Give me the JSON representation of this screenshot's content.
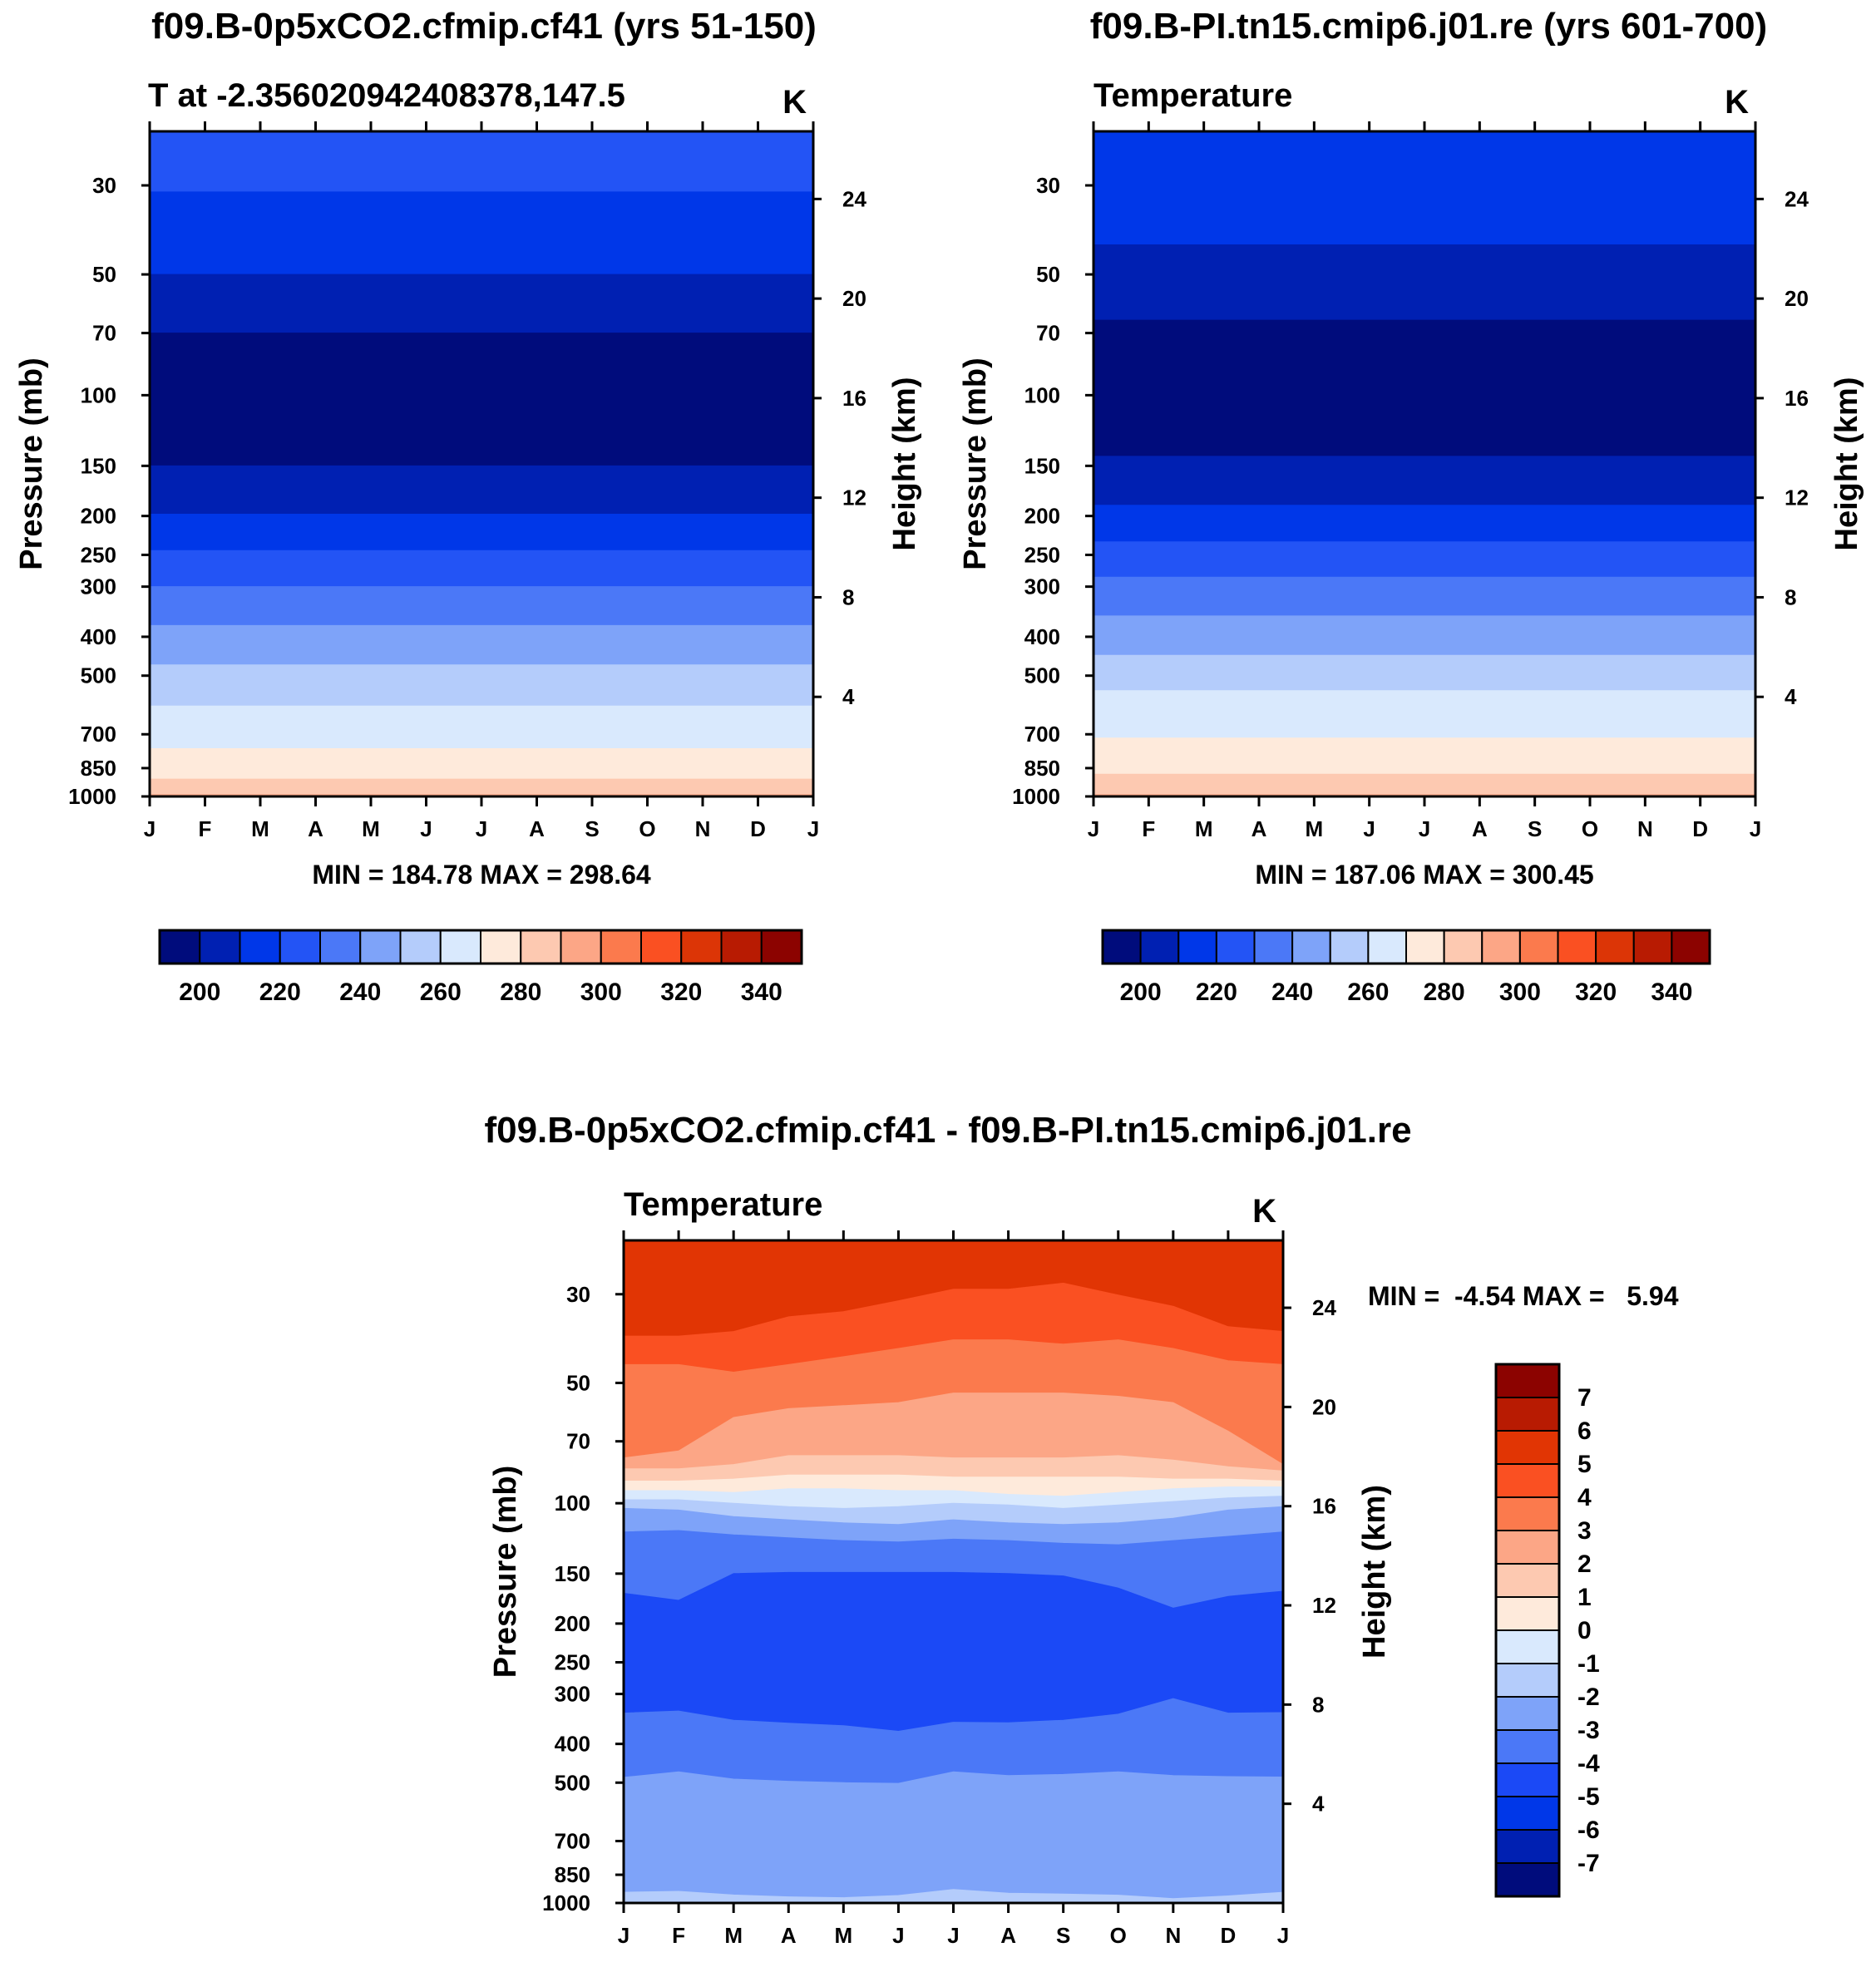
{
  "colors": {
    "abs_palette": [
      "#000c7c",
      "#0020b2",
      "#0037e8",
      "#2354f5",
      "#4b78f7",
      "#7ea3f9",
      "#b4ccfb",
      "#d9e9fd",
      "#feeadb",
      "#fdc9b1",
      "#fca686",
      "#fb7a4d",
      "#fa5022",
      "#dc3506",
      "#b81b02",
      "#8c0300"
    ],
    "diff_palette": [
      "#000c7c",
      "#0020b2",
      "#0037e8",
      "#1b49f6",
      "#4b78f7",
      "#7ea3f9",
      "#b4ccfb",
      "#d9e9fd",
      "#feeadb",
      "#fdc9b1",
      "#fca686",
      "#fb7a4d",
      "#fa5022",
      "#e13504",
      "#b81b02",
      "#8c0300"
    ]
  },
  "chart_data": [
    {
      "type": "contour",
      "title": "f09.B-0p5xCO2.cfmip.cf41 (yrs 51-150)",
      "left_label": "T at -2.356020942408378,147.5",
      "units": "K",
      "ylabel": "Pressure (mb)",
      "y2label": "Height (km)",
      "x_ticks": [
        "J",
        "F",
        "M",
        "A",
        "M",
        "J",
        "J",
        "A",
        "S",
        "O",
        "N",
        "D",
        "J"
      ],
      "pressure_ticks": [
        30,
        50,
        70,
        100,
        150,
        200,
        250,
        300,
        400,
        500,
        700,
        850,
        1000
      ],
      "height_ticks": [
        24,
        20,
        16,
        12,
        8,
        4
      ],
      "ylim_mb": [
        22,
        1000
      ],
      "min_max_text": "MIN = 184.78 MAX = 298.64",
      "colorbar": {
        "orientation": "horizontal",
        "labels": [
          "200",
          "220",
          "240",
          "260",
          "280",
          "300",
          "320",
          "340"
        ]
      },
      "boundaries_mb": [
        {
          "x": [
            0,
            12
          ],
          "p": [
            31,
            31
          ],
          "color_index": 2
        },
        {
          "x": [
            0,
            12
          ],
          "p": [
            50,
            50
          ],
          "color_index": 1
        },
        {
          "x": [
            0,
            12
          ],
          "p": [
            70,
            70
          ],
          "color_index": 0
        },
        {
          "x": [
            0,
            12
          ],
          "p": [
            150,
            150
          ],
          "color_index": 1
        },
        {
          "x": [
            0,
            12
          ],
          "p": [
            198,
            198
          ],
          "color_index": 2
        },
        {
          "x": [
            0,
            12
          ],
          "p": [
            244,
            244
          ],
          "color_index": 3
        },
        {
          "x": [
            0,
            12
          ],
          "p": [
            300,
            300
          ],
          "color_index": 4
        },
        {
          "x": [
            0,
            12
          ],
          "p": [
            375,
            375
          ],
          "color_index": 5
        },
        {
          "x": [
            0,
            12
          ],
          "p": [
            470,
            470
          ],
          "color_index": 6
        },
        {
          "x": [
            0,
            12
          ],
          "p": [
            595,
            595
          ],
          "color_index": 7
        },
        {
          "x": [
            0,
            12
          ],
          "p": [
            760,
            760
          ],
          "color_index": 8
        },
        {
          "x": [
            0,
            12
          ],
          "p": [
            905,
            905
          ],
          "color_index": 9
        },
        {
          "x": [
            0,
            12
          ],
          "p": [
            990,
            990
          ],
          "color_index": 10
        }
      ]
    },
    {
      "type": "contour",
      "title": "f09.B-PI.tn15.cmip6.j01.re (yrs 601-700)",
      "left_label": "Temperature",
      "units": "K",
      "ylabel": "Pressure (mb)",
      "y2label": "Height (km)",
      "x_ticks": [
        "J",
        "F",
        "M",
        "A",
        "M",
        "J",
        "J",
        "A",
        "S",
        "O",
        "N",
        "D",
        "J"
      ],
      "pressure_ticks": [
        30,
        50,
        70,
        100,
        150,
        200,
        250,
        300,
        400,
        500,
        700,
        850,
        1000
      ],
      "height_ticks": [
        24,
        20,
        16,
        12,
        8,
        4
      ],
      "ylim_mb": [
        22,
        1000
      ],
      "min_max_text": "MIN = 187.06 MAX = 300.45",
      "colorbar": {
        "orientation": "horizontal",
        "labels": [
          "200",
          "220",
          "240",
          "260",
          "280",
          "300",
          "320",
          "340"
        ]
      },
      "boundaries_mb": [
        {
          "x": [
            0,
            12
          ],
          "p": [
            42,
            42
          ],
          "color_index": 1
        },
        {
          "x": [
            0,
            12
          ],
          "p": [
            65,
            65
          ],
          "color_index": 0
        },
        {
          "x": [
            0,
            12
          ],
          "p": [
            142,
            142
          ],
          "color_index": 1
        },
        {
          "x": [
            0,
            12
          ],
          "p": [
            188,
            188
          ],
          "color_index": 2
        },
        {
          "x": [
            0,
            12
          ],
          "p": [
            232,
            232
          ],
          "color_index": 3
        },
        {
          "x": [
            0,
            12
          ],
          "p": [
            284,
            284
          ],
          "color_index": 4
        },
        {
          "x": [
            0,
            12
          ],
          "p": [
            355,
            355
          ],
          "color_index": 5
        },
        {
          "x": [
            0,
            12
          ],
          "p": [
            445,
            445
          ],
          "color_index": 6
        },
        {
          "x": [
            0,
            12
          ],
          "p": [
            545,
            545
          ],
          "color_index": 7
        },
        {
          "x": [
            0,
            12
          ],
          "p": [
            715,
            715
          ],
          "color_index": 8
        },
        {
          "x": [
            0,
            12
          ],
          "p": [
            880,
            880
          ],
          "color_index": 9
        },
        {
          "x": [
            0,
            12
          ],
          "p": [
            990,
            990
          ],
          "color_index": 10
        }
      ]
    },
    {
      "type": "contour",
      "title": "f09.B-0p5xCO2.cfmip.cf41 - f09.B-PI.tn15.cmip6.j01.re",
      "left_label": "Temperature",
      "units": "K",
      "ylabel": "Pressure (mb)",
      "y2label": "Height (km)",
      "x_ticks": [
        "J",
        "F",
        "M",
        "A",
        "M",
        "J",
        "J",
        "A",
        "S",
        "O",
        "N",
        "D",
        "J"
      ],
      "pressure_ticks": [
        30,
        50,
        70,
        100,
        150,
        200,
        250,
        300,
        400,
        500,
        700,
        850,
        1000
      ],
      "height_ticks": [
        24,
        20,
        16,
        12,
        8,
        4
      ],
      "ylim_mb": [
        22,
        1000
      ],
      "min_max_text": "MIN =  -4.54 MAX =   5.94",
      "colorbar": {
        "orientation": "vertical",
        "labels": [
          "7",
          "6",
          "5",
          "4",
          "3",
          "2",
          "1",
          "0",
          "-1",
          "-2",
          "-3",
          "-4",
          "-5",
          "-6",
          "-7"
        ]
      },
      "boundaries_mb": [
        {
          "x": [
            0,
            1,
            2,
            3,
            4,
            5,
            6,
            7,
            8,
            9,
            10,
            11,
            12
          ],
          "p": [
            38,
            38,
            37,
            34,
            33,
            31,
            29,
            29,
            28,
            30,
            32,
            36,
            37
          ],
          "color_index": 12
        },
        {
          "x": [
            0,
            1,
            2,
            3,
            4,
            5,
            6,
            7,
            8,
            9,
            10,
            11,
            12
          ],
          "p": [
            45,
            45,
            47,
            45,
            43,
            41,
            39,
            39,
            40,
            39,
            41,
            44,
            45
          ],
          "color_index": 11
        },
        {
          "x": [
            0,
            1,
            2,
            3,
            4,
            5,
            6,
            7,
            8,
            9,
            10,
            11,
            12
          ],
          "p": [
            77,
            74,
            61,
            58,
            57,
            56,
            53,
            53,
            53,
            54,
            56,
            66,
            80
          ],
          "color_index": 10
        },
        {
          "x": [
            0,
            1,
            2,
            3,
            4,
            5,
            6,
            7,
            8,
            9,
            10,
            11,
            12
          ],
          "p": [
            82,
            82,
            80,
            76,
            76,
            76,
            77,
            77,
            77,
            76,
            78,
            81,
            83
          ],
          "color_index": 9
        },
        {
          "x": [
            0,
            1,
            2,
            3,
            4,
            5,
            6,
            7,
            8,
            9,
            10,
            11,
            12
          ],
          "p": [
            88,
            88,
            87,
            85,
            85,
            85,
            86,
            86,
            86,
            86,
            87,
            87,
            88
          ],
          "color_index": 8
        },
        {
          "x": [
            0,
            1,
            2,
            3,
            4,
            5,
            6,
            7,
            8,
            9,
            10,
            11,
            12
          ],
          "p": [
            93,
            93,
            94,
            92,
            92,
            93,
            93,
            95,
            96,
            94,
            92,
            91,
            91
          ],
          "color_index": 7
        },
        {
          "x": [
            0,
            1,
            2,
            3,
            4,
            5,
            6,
            7,
            8,
            9,
            10,
            11,
            12
          ],
          "p": [
            98,
            98,
            100,
            102,
            103,
            102,
            100,
            101,
            103,
            101,
            99,
            97,
            96
          ],
          "color_index": 6
        },
        {
          "x": [
            0,
            1,
            2,
            3,
            4,
            5,
            6,
            7,
            8,
            9,
            10,
            11,
            12
          ],
          "p": [
            103,
            104,
            108,
            110,
            112,
            113,
            110,
            112,
            113,
            112,
            109,
            104,
            102
          ],
          "color_index": 5
        },
        {
          "x": [
            0,
            1,
            2,
            3,
            4,
            5,
            6,
            7,
            8,
            9,
            10,
            11,
            12
          ],
          "p": [
            118,
            117,
            120,
            122,
            124,
            125,
            123,
            124,
            126,
            127,
            124,
            121,
            118
          ],
          "color_index": 4
        },
        {
          "x": [
            0,
            1,
            2,
            3,
            4,
            5,
            6,
            7,
            8,
            9,
            10,
            11,
            12
          ],
          "p": [
            168,
            175,
            150,
            149,
            149,
            149,
            149,
            150,
            152,
            163,
            183,
            171,
            166
          ],
          "color_index": 3
        },
        {
          "x": [
            0,
            1,
            2,
            3,
            4,
            5,
            6,
            7,
            8,
            9,
            10,
            11,
            12
          ],
          "p": [
            335,
            331,
            349,
            355,
            360,
            372,
            353,
            354,
            349,
            337,
            308,
            335,
            334
          ],
          "color_index": 4
        },
        {
          "x": [
            0,
            1,
            2,
            3,
            4,
            5,
            6,
            7,
            8,
            9,
            10,
            11,
            12
          ],
          "p": [
            485,
            470,
            490,
            496,
            500,
            502,
            470,
            480,
            477,
            470,
            480,
            483,
            484
          ],
          "color_index": 5
        },
        {
          "x": [
            0,
            1,
            2,
            3,
            4,
            5,
            6,
            7,
            8,
            9,
            10,
            11,
            12
          ],
          "p": [
            940,
            935,
            955,
            965,
            970,
            958,
            925,
            945,
            950,
            956,
            975,
            960,
            940
          ],
          "color_index": 6
        }
      ]
    }
  ]
}
